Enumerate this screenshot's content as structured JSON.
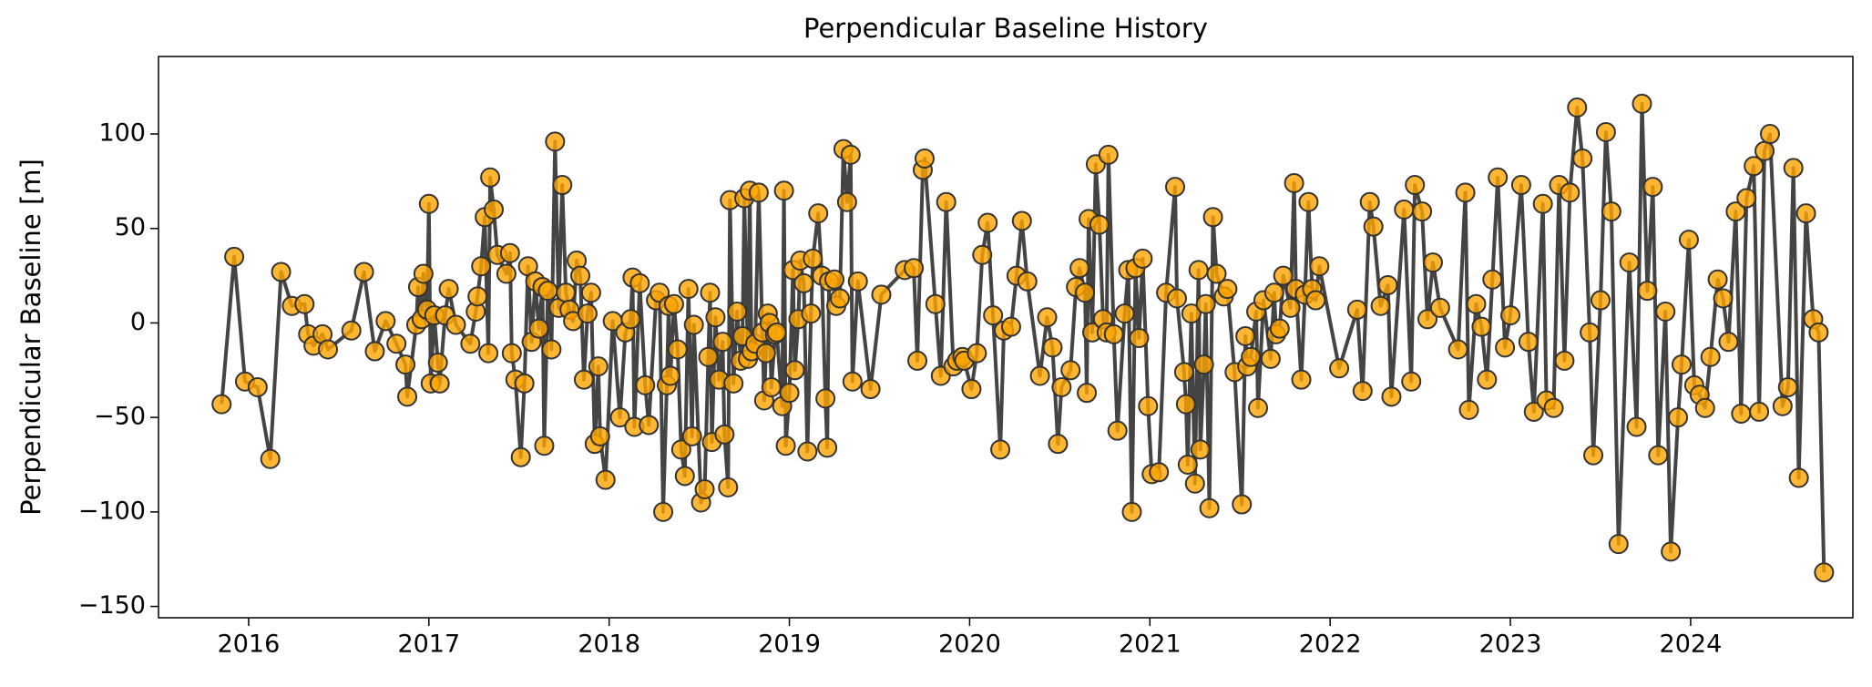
{
  "chart_data": {
    "type": "line",
    "title": "Perpendicular Baseline History",
    "ylabel": "Perpendicular Baseline [m]",
    "color": "#444444",
    "marker_color": "#ffa500",
    "xlim": [
      2015.5,
      2024.9
    ],
    "ylim": [
      -156,
      141
    ],
    "xticks": [
      2016,
      2017,
      2018,
      2019,
      2020,
      2021,
      2022,
      2023,
      2024
    ],
    "yticks": [
      {
        "value": -150,
        "label": "−150"
      },
      {
        "value": -100,
        "label": "−100"
      },
      {
        "value": -50,
        "label": "−50"
      },
      0,
      50,
      100
    ],
    "x": [
      2015.85,
      2015.92,
      2015.98,
      2016.05,
      2016.12,
      2016.18,
      2016.24,
      2016.31,
      2016.33,
      2016.36,
      2016.41,
      2016.44,
      2016.57,
      2016.64,
      2016.7,
      2016.76,
      2016.82,
      2016.87,
      2016.88,
      2016.93,
      2016.94,
      2016.96,
      2016.97,
      2016.99,
      2017.0,
      2017.01,
      2017.03,
      2017.05,
      2017.06,
      2017.09,
      2017.11,
      2017.15,
      2017.23,
      2017.26,
      2017.27,
      2017.29,
      2017.31,
      2017.33,
      2017.34,
      2017.36,
      2017.38,
      2017.43,
      2017.45,
      2017.46,
      2017.48,
      2017.51,
      2017.53,
      2017.55,
      2017.57,
      2017.59,
      2017.61,
      2017.63,
      2017.64,
      2017.66,
      2017.68,
      2017.7,
      2017.72,
      2017.74,
      2017.76,
      2017.78,
      2017.8,
      2017.82,
      2017.84,
      2017.86,
      2017.88,
      2017.9,
      2017.92,
      2017.94,
      2017.95,
      2017.98,
      2018.02,
      2018.06,
      2018.09,
      2018.12,
      2018.13,
      2018.14,
      2018.17,
      2018.2,
      2018.22,
      2018.26,
      2018.28,
      2018.3,
      2018.32,
      2018.33,
      2018.34,
      2018.36,
      2018.38,
      2018.4,
      2018.42,
      2018.44,
      2018.46,
      2018.47,
      2018.51,
      2018.53,
      2018.55,
      2018.56,
      2018.57,
      2018.59,
      2018.61,
      2018.63,
      2018.64,
      2018.66,
      2018.67,
      2018.69,
      2018.71,
      2018.73,
      2018.74,
      2018.75,
      2018.77,
      2018.78,
      2018.79,
      2018.81,
      2018.83,
      2018.85,
      2018.86,
      2018.87,
      2018.88,
      2018.89,
      2018.9,
      2018.92,
      2018.93,
      2018.96,
      2018.97,
      2018.98,
      2019.0,
      2019.02,
      2019.03,
      2019.05,
      2019.06,
      2019.08,
      2019.1,
      2019.12,
      2019.13,
      2019.16,
      2019.18,
      2019.2,
      2019.21,
      2019.22,
      2019.25,
      2019.26,
      2019.28,
      2019.3,
      2019.32,
      2019.34,
      2019.35,
      2019.38,
      2019.45,
      2019.51,
      2019.64,
      2019.69,
      2019.71,
      2019.74,
      2019.75,
      2019.81,
      2019.84,
      2019.87,
      2019.91,
      2019.93,
      2019.96,
      2019.97,
      2020.01,
      2020.04,
      2020.07,
      2020.1,
      2020.13,
      2020.17,
      2020.19,
      2020.23,
      2020.26,
      2020.29,
      2020.32,
      2020.39,
      2020.43,
      2020.46,
      2020.49,
      2020.51,
      2020.56,
      2020.59,
      2020.61,
      2020.64,
      2020.65,
      2020.66,
      2020.68,
      2020.7,
      2020.72,
      2020.74,
      2020.76,
      2020.77,
      2020.8,
      2020.82,
      2020.86,
      2020.88,
      2020.9,
      2020.92,
      2020.94,
      2020.96,
      2020.99,
      2021.01,
      2021.05,
      2021.09,
      2021.14,
      2021.15,
      2021.19,
      2021.2,
      2021.21,
      2021.23,
      2021.25,
      2021.27,
      2021.28,
      2021.3,
      2021.31,
      2021.33,
      2021.35,
      2021.37,
      2021.41,
      2021.43,
      2021.47,
      2021.51,
      2021.53,
      2021.54,
      2021.56,
      2021.59,
      2021.6,
      2021.63,
      2021.67,
      2021.69,
      2021.7,
      2021.72,
      2021.74,
      2021.78,
      2021.8,
      2021.81,
      2021.84,
      2021.86,
      2021.88,
      2021.9,
      2021.92,
      2021.94,
      2022.05,
      2022.15,
      2022.18,
      2022.22,
      2022.24,
      2022.28,
      2022.32,
      2022.34,
      2022.41,
      2022.45,
      2022.47,
      2022.51,
      2022.54,
      2022.57,
      2022.61,
      2022.71,
      2022.75,
      2022.77,
      2022.81,
      2022.84,
      2022.87,
      2022.9,
      2022.93,
      2022.97,
      2023.0,
      2023.06,
      2023.1,
      2023.13,
      2023.18,
      2023.2,
      2023.24,
      2023.27,
      2023.3,
      2023.33,
      2023.37,
      2023.4,
      2023.44,
      2023.46,
      2023.5,
      2023.53,
      2023.56,
      2023.6,
      2023.66,
      2023.7,
      2023.73,
      2023.76,
      2023.79,
      2023.82,
      2023.86,
      2023.89,
      2023.93,
      2023.95,
      2023.99,
      2024.02,
      2024.05,
      2024.08,
      2024.11,
      2024.15,
      2024.18,
      2024.21,
      2024.25,
      2024.28,
      2024.31,
      2024.35,
      2024.38,
      2024.41,
      2024.44,
      2024.51,
      2024.54,
      2024.57,
      2024.6,
      2024.64,
      2024.68,
      2024.71,
      2024.74
    ],
    "values": [
      -43,
      35,
      -31,
      -34,
      -72,
      27,
      9,
      10,
      -6,
      -12,
      -6,
      -14,
      -4,
      27,
      -15,
      1,
      -11,
      -22,
      -39,
      -1,
      19,
      2,
      26,
      7,
      63,
      -32,
      4,
      -21,
      -32,
      4,
      18,
      -1,
      -11,
      6,
      14,
      30,
      56,
      -16,
      77,
      60,
      36,
      26,
      37,
      -16,
      -30,
      -71,
      -32,
      30,
      -10,
      22,
      -3,
      19,
      -65,
      17,
      -14,
      96,
      8,
      73,
      16,
      7,
      1,
      33,
      25,
      -30,
      5,
      16,
      -64,
      -23,
      -60,
      -83,
      1,
      -50,
      -5,
      2,
      24,
      -55,
      21,
      -33,
      -54,
      12,
      16,
      -100,
      -33,
      9,
      -28,
      10,
      -14,
      -67,
      -81,
      18,
      -60,
      -1,
      -95,
      -88,
      -18,
      16,
      -63,
      3,
      -30,
      -10,
      -59,
      -87,
      65,
      -32,
      6,
      -20,
      -7,
      66,
      -19,
      70,
      -15,
      -11,
      69,
      -5,
      -41,
      -16,
      5,
      0,
      -34,
      -6,
      -5,
      -44,
      70,
      -65,
      -37,
      28,
      -25,
      2,
      33,
      21,
      -68,
      5,
      34,
      58,
      25,
      -40,
      -66,
      22,
      23,
      9,
      13,
      92,
      64,
      89,
      -31,
      22,
      -35,
      15,
      28,
      29,
      -20,
      81,
      87,
      10,
      -28,
      64,
      -23,
      -20,
      -18,
      -20,
      -35,
      -16,
      36,
      53,
      4,
      -67,
      -4,
      -2,
      25,
      54,
      22,
      -28,
      3,
      -13,
      -64,
      -34,
      -25,
      19,
      29,
      16,
      -37,
      55,
      -5,
      84,
      52,
      2,
      -5,
      89,
      -6,
      -57,
      5,
      28,
      -100,
      29,
      -8,
      34,
      -44,
      -80,
      -79,
      16,
      72,
      13,
      -26,
      -43,
      -75,
      5,
      -85,
      28,
      -67,
      -22,
      10,
      -98,
      56,
      26,
      14,
      18,
      -26,
      -96,
      -7,
      -23,
      -18,
      6,
      -45,
      12,
      -19,
      16,
      -6,
      -3,
      25,
      8,
      74,
      18,
      -30,
      15,
      64,
      18,
      12,
      30,
      -24,
      7,
      -36,
      64,
      51,
      9,
      20,
      -39,
      60,
      -31,
      73,
      59,
      2,
      32,
      8,
      -14,
      69,
      -46,
      10,
      -2,
      -30,
      23,
      77,
      -13,
      4,
      73,
      -10,
      -47,
      63,
      -41,
      -45,
      73,
      -20,
      69,
      114,
      87,
      -5,
      -70,
      12,
      101,
      59,
      -117,
      32,
      -55,
      116,
      17,
      72,
      -70,
      6,
      -121,
      -50,
      -22,
      44,
      -33,
      -38,
      -45,
      -18,
      23,
      13,
      -10,
      59,
      -48,
      66,
      83,
      -47,
      91,
      100,
      -44,
      -34,
      82,
      -82,
      58,
      2,
      -5,
      -132
    ]
  }
}
